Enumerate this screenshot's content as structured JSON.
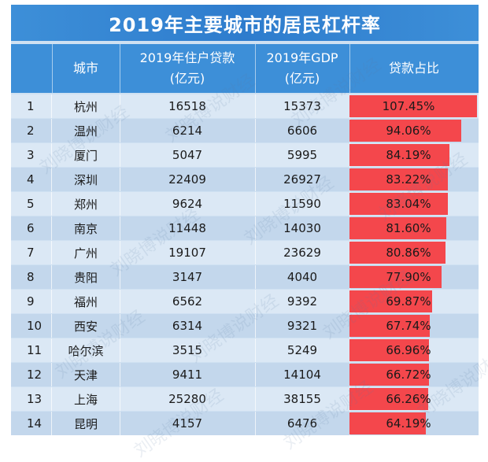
{
  "title": "2019年主要城市的居民杠杆率",
  "headers": {
    "rank": "",
    "city": "城市",
    "loan_line1": "2019年住户贷款",
    "loan_line2": "(亿元)",
    "gdp_line1": "2019年GDP",
    "gdp_line2": "(亿元)",
    "ratio": "贷款占比"
  },
  "watermark_text": "刘晓博说财经",
  "colors": {
    "bar": "#f4474c",
    "header": "#3d8fd8"
  },
  "rows": [
    {
      "rank": "1",
      "city": "杭州",
      "loan": "16518",
      "gdp": "15373",
      "ratio_label": "107.45%",
      "ratio": 107.45
    },
    {
      "rank": "2",
      "city": "温州",
      "loan": "6214",
      "gdp": "6606",
      "ratio_label": "94.06%",
      "ratio": 94.06
    },
    {
      "rank": "3",
      "city": "厦门",
      "loan": "5047",
      "gdp": "5995",
      "ratio_label": "84.19%",
      "ratio": 84.19
    },
    {
      "rank": "4",
      "city": "深圳",
      "loan": "22409",
      "gdp": "26927",
      "ratio_label": "83.22%",
      "ratio": 83.22
    },
    {
      "rank": "5",
      "city": "郑州",
      "loan": "9624",
      "gdp": "11590",
      "ratio_label": "83.04%",
      "ratio": 83.04
    },
    {
      "rank": "6",
      "city": "南京",
      "loan": "11448",
      "gdp": "14030",
      "ratio_label": "81.60%",
      "ratio": 81.6
    },
    {
      "rank": "7",
      "city": "广州",
      "loan": "19107",
      "gdp": "23629",
      "ratio_label": "80.86%",
      "ratio": 80.86
    },
    {
      "rank": "8",
      "city": "贵阳",
      "loan": "3147",
      "gdp": "4040",
      "ratio_label": "77.90%",
      "ratio": 77.9
    },
    {
      "rank": "9",
      "city": "福州",
      "loan": "6562",
      "gdp": "9392",
      "ratio_label": "69.87%",
      "ratio": 69.87
    },
    {
      "rank": "10",
      "city": "西安",
      "loan": "6314",
      "gdp": "9321",
      "ratio_label": "67.74%",
      "ratio": 67.74
    },
    {
      "rank": "11",
      "city": "哈尔滨",
      "loan": "3515",
      "gdp": "5249",
      "ratio_label": "66.96%",
      "ratio": 66.96
    },
    {
      "rank": "12",
      "city": "天津",
      "loan": "9411",
      "gdp": "14104",
      "ratio_label": "66.72%",
      "ratio": 66.72
    },
    {
      "rank": "13",
      "city": "上海",
      "loan": "25280",
      "gdp": "38155",
      "ratio_label": "66.26%",
      "ratio": 66.26
    },
    {
      "rank": "14",
      "city": "昆明",
      "loan": "4157",
      "gdp": "6476",
      "ratio_label": "64.19%",
      "ratio": 64.19
    }
  ]
}
